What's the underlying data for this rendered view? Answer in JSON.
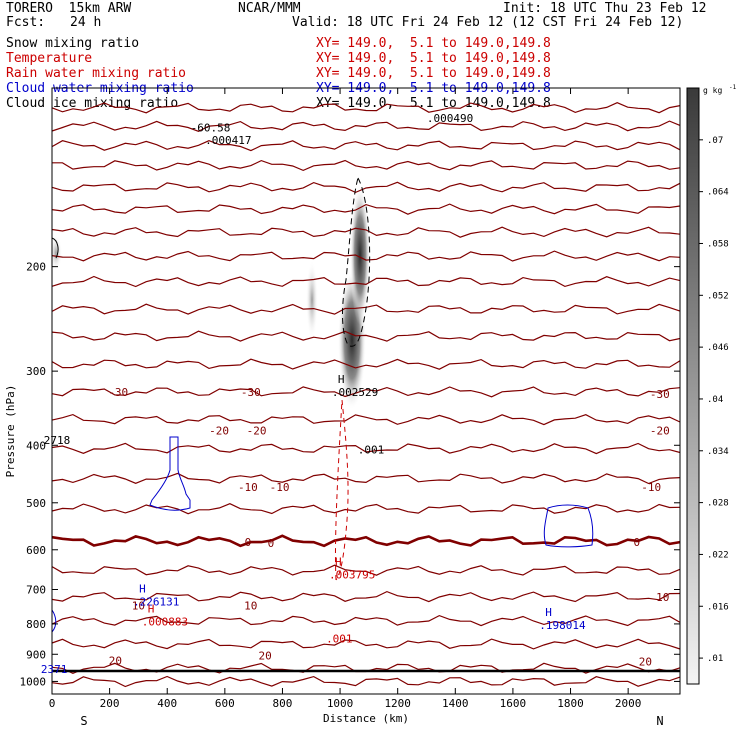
{
  "header": {
    "model": "TORERO  15km ARW",
    "org": "NCAR/MMM",
    "init": "Init: 18 UTC Thu 23 Feb 12",
    "fcst_label": "Fcst:",
    "fcst_value": "24 h",
    "valid": "Valid: 18 UTC Fri 24 Feb 12 (12 CST Fri 24 Feb 12)"
  },
  "fields": [
    {
      "name": "Snow mixing ratio",
      "xy": "XY= 149.0,  5.1 to 149.0,149.8",
      "color": "#000000"
    },
    {
      "name": "Temperature",
      "xy": "XY= 149.0,  5.1 to 149.0,149.8",
      "color": "#cc0000"
    },
    {
      "name": "Rain water mixing ratio",
      "xy": "XY= 149.0,  5.1 to 149.0,149.8",
      "color": "#cc0000"
    },
    {
      "name": "Cloud water mixing ratio",
      "xy": "XY= 149.0,  5.1 to 149.0,149.8",
      "color": "#0000cc"
    },
    {
      "name": "Cloud ice mixing ratio",
      "xy": "XY= 149.0,  5.1 to 149.0,149.8",
      "color": "#000000"
    }
  ],
  "chart_data": {
    "type": "contour-cross-section",
    "xlabel": "Distance (km)",
    "ylabel": "Pressure (hPa)",
    "xlim": [
      0,
      2180
    ],
    "ylim": [
      1050,
      100
    ],
    "y_scale": "log",
    "xticks": [
      0,
      200,
      400,
      600,
      800,
      1000,
      1200,
      1400,
      1600,
      1800,
      2000
    ],
    "yticks": [
      200,
      300,
      400,
      500,
      600,
      700,
      800,
      900,
      1000
    ],
    "left_end_label": "S",
    "right_end_label": "N",
    "colorbar": {
      "unit": "g kg",
      "unit_exp": "-1",
      "ticks": [
        ".01",
        ".016",
        ".022",
        ".028",
        ".034",
        ".04",
        ".046",
        ".052",
        ".058",
        ".064",
        ".07"
      ]
    },
    "temperature_labels": [
      {
        "x": 230,
        "p": 325,
        "text": "-30"
      },
      {
        "x": 690,
        "p": 325,
        "text": "-30"
      },
      {
        "x": 2110,
        "p": 328,
        "text": "-30"
      },
      {
        "x": 580,
        "p": 378,
        "text": "-20"
      },
      {
        "x": 710,
        "p": 378,
        "text": "-20"
      },
      {
        "x": 2110,
        "p": 378,
        "text": "-20"
      },
      {
        "x": 680,
        "p": 470,
        "text": "-10"
      },
      {
        "x": 790,
        "p": 470,
        "text": "-10"
      },
      {
        "x": 2080,
        "p": 470,
        "text": "-10"
      },
      {
        "x": 680,
        "p": 582,
        "text": "0"
      },
      {
        "x": 760,
        "p": 584,
        "text": "0"
      },
      {
        "x": 2030,
        "p": 582,
        "text": "0"
      },
      {
        "x": 300,
        "p": 745,
        "text": "10"
      },
      {
        "x": 690,
        "p": 745,
        "text": "10"
      },
      {
        "x": 2120,
        "p": 720,
        "text": "10"
      },
      {
        "x": 220,
        "p": 922,
        "text": "20"
      },
      {
        "x": 740,
        "p": 905,
        "text": "20"
      },
      {
        "x": 2060,
        "p": 925,
        "text": "20"
      }
    ],
    "extrema_labels": [
      {
        "x": 1020,
        "p": 324,
        "mark": "H",
        "value": ".002529",
        "color": "#000000"
      },
      {
        "x": 1110,
        "p": 405,
        "mark": "",
        "value": ".001",
        "color": "#000000"
      },
      {
        "x": 1010,
        "p": 658,
        "mark": "H",
        "value": ".003795",
        "color": "#cc0000"
      },
      {
        "x": 1000,
        "p": 843,
        "mark": "",
        "value": ".001",
        "color": "#cc0000"
      },
      {
        "x": 330,
        "p": 730,
        "mark": "H",
        "value": ".226131",
        "color": "#0000cc"
      },
      {
        "x": 360,
        "p": 790,
        "mark": "H",
        "value": ".000883",
        "color": "#cc0000"
      },
      {
        "x": 1740,
        "p": 800,
        "mark": "H",
        "value": ".198014",
        "color": "#0000cc"
      },
      {
        "x": 20,
        "p": 390,
        "mark": "",
        "value": "2718",
        "color": "#000000"
      },
      {
        "x": 10,
        "p": 950,
        "mark": "",
        "value": "2371",
        "color": "#0000cc"
      },
      {
        "x": 530,
        "p": 116,
        "mark": "",
        "value": "-60.58",
        "color": "#000000"
      },
      {
        "x": 580,
        "p": 122,
        "mark": "",
        "value": ".000417",
        "color": "#000000"
      },
      {
        "x": 1350,
        "p": 112,
        "mark": "",
        "value": ".000490",
        "color": "#000000"
      }
    ]
  }
}
